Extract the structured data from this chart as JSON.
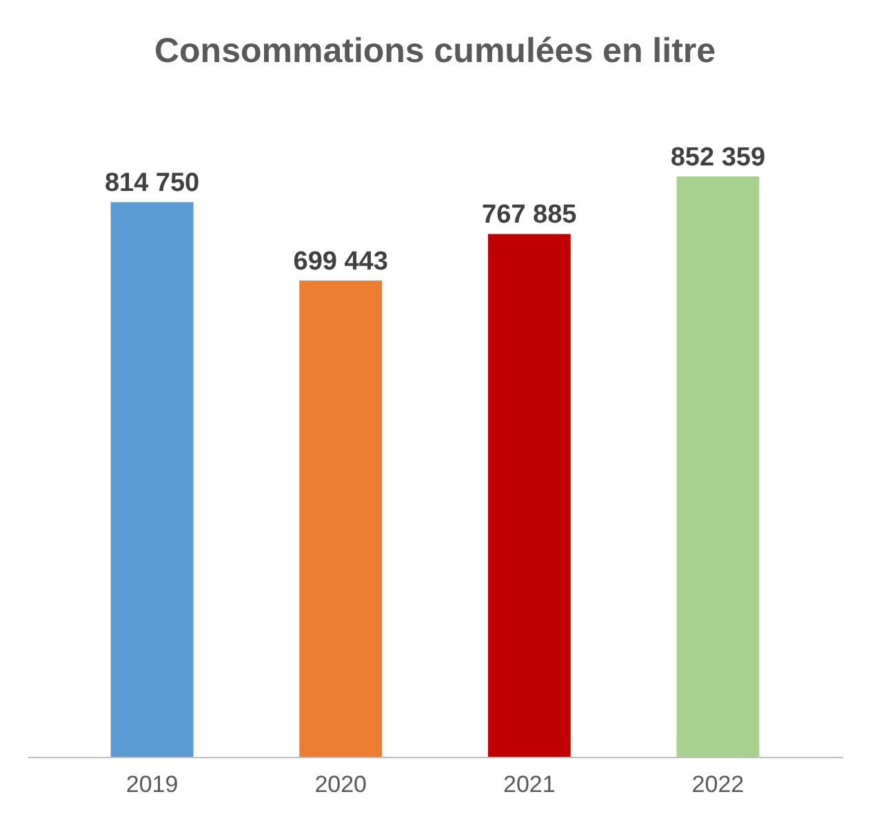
{
  "chart_data": {
    "type": "bar",
    "title": "Consommations cumulées en litre",
    "categories": [
      "2019",
      "2020",
      "2021",
      "2022"
    ],
    "values": [
      814750,
      699443,
      767885,
      852359
    ],
    "value_labels": [
      "814 750",
      "699 443",
      "767 885",
      "852 359"
    ],
    "colors": [
      "#5b9bd5",
      "#ed7d31",
      "#c00000",
      "#a9d18e"
    ],
    "grid": false
  }
}
